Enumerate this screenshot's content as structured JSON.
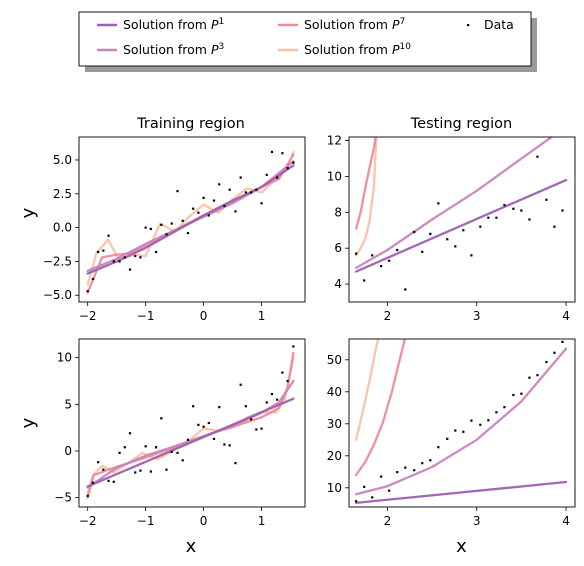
{
  "chart_data": {
    "type": "line",
    "legend": {
      "placement": "top-center",
      "entries": [
        {
          "label": "Solution from ",
          "sup": "1",
          "kind": "line",
          "color": "#9e5fb0"
        },
        {
          "label": "Solution from ",
          "sup": "3",
          "kind": "line",
          "color": "#c884bd"
        },
        {
          "label": "Solution from ",
          "sup": "7",
          "kind": "line",
          "color": "#ee8b96"
        },
        {
          "label": "Solution from ",
          "sup": "10",
          "kind": "line",
          "color": "#f9c2a6"
        },
        {
          "label": "Data",
          "sup": "",
          "kind": "point",
          "color": "#000000"
        }
      ]
    },
    "column_titles": [
      "Training region",
      "Testing region"
    ],
    "xlabel": "x",
    "ylabel": "y",
    "panels": [
      {
        "id": "top-left",
        "xlim": [
          -2.15,
          1.75
        ],
        "ylim": [
          -5.5,
          6.7
        ],
        "xticks": [
          -2,
          -1,
          0,
          1
        ],
        "xtick_labels": [
          "−2",
          "−1",
          "0",
          "1"
        ],
        "yticks": [
          -5.0,
          -2.5,
          0.0,
          2.5,
          5.0
        ],
        "ytick_labels": [
          "−5.0",
          "−2.5",
          "0.0",
          "2.5",
          "5.0"
        ],
        "data": {
          "x": [
            -2.0,
            -1.91,
            -1.82,
            -1.73,
            -1.64,
            -1.55,
            -1.45,
            -1.36,
            -1.27,
            -1.18,
            -1.09,
            -1.0,
            -0.91,
            -0.82,
            -0.73,
            -0.64,
            -0.55,
            -0.45,
            -0.36,
            -0.27,
            -0.18,
            -0.09,
            0.0,
            0.09,
            0.18,
            0.27,
            0.36,
            0.45,
            0.55,
            0.64,
            0.73,
            0.82,
            0.91,
            1.0,
            1.09,
            1.18,
            1.27,
            1.36,
            1.45,
            1.55
          ],
          "y": [
            -4.7,
            -3.8,
            -1.8,
            -1.7,
            -0.6,
            -2.5,
            -2.5,
            -2.2,
            -3.1,
            -2.1,
            -2.2,
            0.0,
            -0.1,
            -1.8,
            0.2,
            -0.5,
            0.3,
            2.7,
            0.5,
            -0.4,
            1.4,
            1.1,
            2.2,
            0.9,
            2.0,
            3.2,
            1.6,
            2.8,
            1.2,
            3.7,
            2.6,
            2.6,
            2.8,
            1.8,
            3.9,
            5.6,
            3.7,
            5.5,
            4.4,
            4.8
          ]
        },
        "curves": [
          {
            "name": "P1",
            "x": [
              -2.0,
              -1.5,
              -1.0,
              -0.5,
              0.0,
              0.5,
              1.0,
              1.55
            ],
            "y": [
              -3.4,
              -2.5,
              -1.5,
              -0.3,
              0.9,
              2.0,
              3.0,
              4.6
            ]
          },
          {
            "name": "P3",
            "x": [
              -2.0,
              -1.5,
              -1.0,
              -0.5,
              0.0,
              0.5,
              1.0,
              1.55
            ],
            "y": [
              -3.2,
              -2.3,
              -1.2,
              -0.2,
              0.8,
              1.8,
              3.0,
              4.9
            ]
          },
          {
            "name": "P7",
            "x": [
              -2.0,
              -1.75,
              -1.5,
              -1.25,
              -1.0,
              -0.5,
              0.0,
              0.5,
              1.0,
              1.3,
              1.55
            ],
            "y": [
              -4.8,
              -2.2,
              -2.0,
              -1.9,
              -1.3,
              -0.2,
              0.9,
              1.9,
              3.0,
              3.6,
              5.4
            ]
          },
          {
            "name": "P10",
            "x": [
              -2.0,
              -1.85,
              -1.65,
              -1.45,
              -1.2,
              -1.0,
              -0.75,
              -0.5,
              -0.25,
              0.0,
              0.25,
              0.5,
              0.75,
              1.0,
              1.25,
              1.45,
              1.55
            ],
            "y": [
              -4.2,
              -1.9,
              -0.9,
              -2.4,
              -2.0,
              -2.1,
              0.3,
              -0.3,
              0.8,
              1.7,
              1.1,
              2.1,
              2.9,
              2.6,
              3.6,
              4.4,
              5.6
            ]
          }
        ]
      },
      {
        "id": "top-right",
        "xlim": [
          1.57,
          4.1
        ],
        "ylim": [
          3.0,
          12.2
        ],
        "xticks": [
          2,
          3,
          4
        ],
        "xtick_labels": [
          "2",
          "3",
          "4"
        ],
        "yticks": [
          4,
          6,
          8,
          10,
          12
        ],
        "ytick_labels": [
          "4",
          "6",
          "8",
          "10",
          "12"
        ],
        "data": {
          "x": [
            1.65,
            1.74,
            1.83,
            1.93,
            2.02,
            2.11,
            2.2,
            2.3,
            2.39,
            2.48,
            2.57,
            2.67,
            2.76,
            2.85,
            2.94,
            3.04,
            3.13,
            3.22,
            3.31,
            3.41,
            3.5,
            3.59,
            3.68,
            3.78,
            3.87,
            3.96
          ],
          "y": [
            5.7,
            4.2,
            5.6,
            5.0,
            5.3,
            5.9,
            3.7,
            6.9,
            5.8,
            6.8,
            8.5,
            6.5,
            6.1,
            7.0,
            5.6,
            7.2,
            7.7,
            7.7,
            8.4,
            8.2,
            8.1,
            7.6,
            11.1,
            8.7,
            7.2,
            8.1
          ]
        },
        "curves": [
          {
            "name": "P1",
            "x": [
              1.65,
              4.0
            ],
            "y": [
              4.7,
              9.8
            ]
          },
          {
            "name": "P3",
            "x": [
              1.65,
              2.0,
              2.5,
              3.0,
              3.5,
              3.95
            ],
            "y": [
              4.9,
              5.9,
              7.6,
              9.2,
              11.0,
              12.6
            ]
          },
          {
            "name": "P7",
            "x": [
              1.65,
              1.7,
              1.75,
              1.8,
              1.85,
              1.88
            ],
            "y": [
              7.1,
              8.0,
              9.3,
              10.5,
              11.6,
              12.6
            ]
          },
          {
            "name": "P10",
            "x": [
              1.65,
              1.7,
              1.75,
              1.8,
              1.85,
              1.88
            ],
            "y": [
              5.6,
              6.0,
              6.5,
              7.5,
              9.5,
              12.6
            ]
          }
        ]
      },
      {
        "id": "bottom-left",
        "xlim": [
          -2.15,
          1.75
        ],
        "ylim": [
          -6.0,
          12.0
        ],
        "xticks": [
          -2,
          -1,
          0,
          1
        ],
        "xtick_labels": [
          "−2",
          "−1",
          "0",
          "1"
        ],
        "yticks": [
          -5,
          0,
          5,
          10
        ],
        "ytick_labels": [
          "−5",
          "0",
          "5",
          "10"
        ],
        "data": {
          "x": [
            -2.0,
            -1.91,
            -1.82,
            -1.73,
            -1.64,
            -1.55,
            -1.45,
            -1.36,
            -1.27,
            -1.18,
            -1.09,
            -1.0,
            -0.91,
            -0.82,
            -0.73,
            -0.64,
            -0.55,
            -0.45,
            -0.36,
            -0.27,
            -0.18,
            -0.09,
            0.0,
            0.09,
            0.18,
            0.27,
            0.36,
            0.45,
            0.55,
            0.64,
            0.73,
            0.82,
            0.91,
            1.0,
            1.09,
            1.18,
            1.27,
            1.36,
            1.45,
            1.55
          ],
          "y": [
            -4.8,
            -3.4,
            -1.2,
            -2.0,
            -3.2,
            -3.3,
            -0.2,
            0.4,
            1.9,
            -2.3,
            -2.1,
            0.5,
            -2.2,
            0.4,
            3.5,
            -2.0,
            -0.1,
            -0.2,
            -1.0,
            1.2,
            4.8,
            2.8,
            2.6,
            3.0,
            1.3,
            4.7,
            0.7,
            0.6,
            -1.3,
            7.1,
            4.8,
            3.4,
            2.3,
            2.4,
            5.2,
            6.1,
            5.5,
            8.4,
            7.5,
            11.2
          ]
        },
        "curves": [
          {
            "name": "P1",
            "x": [
              -2.0,
              1.55
            ],
            "y": [
              -3.8,
              5.6
            ]
          },
          {
            "name": "P3",
            "x": [
              -2.0,
              -1.5,
              -1.0,
              -0.5,
              0.0,
              0.5,
              1.0,
              1.3,
              1.55
            ],
            "y": [
              -3.9,
              -1.8,
              -0.5,
              0.5,
              1.6,
              2.7,
              4.1,
              5.2,
              7.5
            ]
          },
          {
            "name": "P7",
            "x": [
              -2.0,
              -1.9,
              -1.6,
              -1.3,
              -1.0,
              -0.5,
              0.0,
              0.5,
              1.0,
              1.3,
              1.45,
              1.55
            ],
            "y": [
              -5.0,
              -2.6,
              -1.9,
              -1.3,
              -0.7,
              0.4,
              1.6,
              2.6,
              3.6,
              4.6,
              6.8,
              10.5
            ]
          },
          {
            "name": "P10",
            "x": [
              -2.0,
              -1.9,
              -1.75,
              -1.55,
              -1.3,
              -1.05,
              -0.8,
              -0.5,
              -0.25,
              0.0,
              0.25,
              0.5,
              0.75,
              1.0,
              1.25,
              1.4,
              1.55
            ],
            "y": [
              -4.5,
              -2.5,
              -1.6,
              -2.3,
              -1.3,
              -0.2,
              -0.9,
              0.1,
              1.1,
              2.4,
              2.2,
              2.5,
              3.6,
              4.2,
              4.1,
              5.5,
              10.0
            ]
          }
        ]
      },
      {
        "id": "bottom-right",
        "xlim": [
          1.57,
          4.1
        ],
        "ylim": [
          4.0,
          56.5
        ],
        "xticks": [
          2,
          3,
          4
        ],
        "xtick_labels": [
          "2",
          "3",
          "4"
        ],
        "yticks": [
          10,
          20,
          30,
          40,
          50
        ],
        "ytick_labels": [
          "10",
          "20",
          "30",
          "40",
          "50"
        ],
        "data": {
          "x": [
            1.65,
            1.74,
            1.83,
            1.93,
            2.02,
            2.11,
            2.2,
            2.3,
            2.39,
            2.48,
            2.57,
            2.67,
            2.76,
            2.85,
            2.94,
            3.04,
            3.13,
            3.22,
            3.31,
            3.41,
            3.5,
            3.59,
            3.68,
            3.78,
            3.87,
            3.96
          ],
          "y": [
            5.8,
            10.3,
            7.0,
            13.5,
            9.1,
            14.9,
            16.3,
            15.5,
            17.7,
            18.6,
            22.7,
            25.3,
            27.9,
            27.5,
            31.0,
            29.7,
            31.1,
            33.6,
            35.2,
            39.0,
            39.4,
            44.4,
            45.2,
            49.3,
            52.2,
            55.6
          ]
        },
        "curves": [
          {
            "name": "P1",
            "x": [
              1.65,
              4.0
            ],
            "y": [
              5.3,
              11.8
            ]
          },
          {
            "name": "P3",
            "x": [
              1.65,
              2.0,
              2.5,
              3.0,
              3.5,
              4.0
            ],
            "y": [
              8.0,
              10.5,
              16.5,
              25.0,
              37.0,
              53.5
            ]
          },
          {
            "name": "P7",
            "x": [
              1.65,
              1.75,
              1.85,
              1.95,
              2.05,
              2.12,
              2.2
            ],
            "y": [
              14.0,
              18.0,
              23.5,
              30.5,
              40.0,
              48.0,
              57.0
            ]
          },
          {
            "name": "P10",
            "x": [
              1.65,
              1.7,
              1.75,
              1.8,
              1.86,
              1.9
            ],
            "y": [
              25.0,
              31.0,
              37.0,
              43.5,
              52.0,
              57.0
            ]
          }
        ]
      }
    ]
  }
}
